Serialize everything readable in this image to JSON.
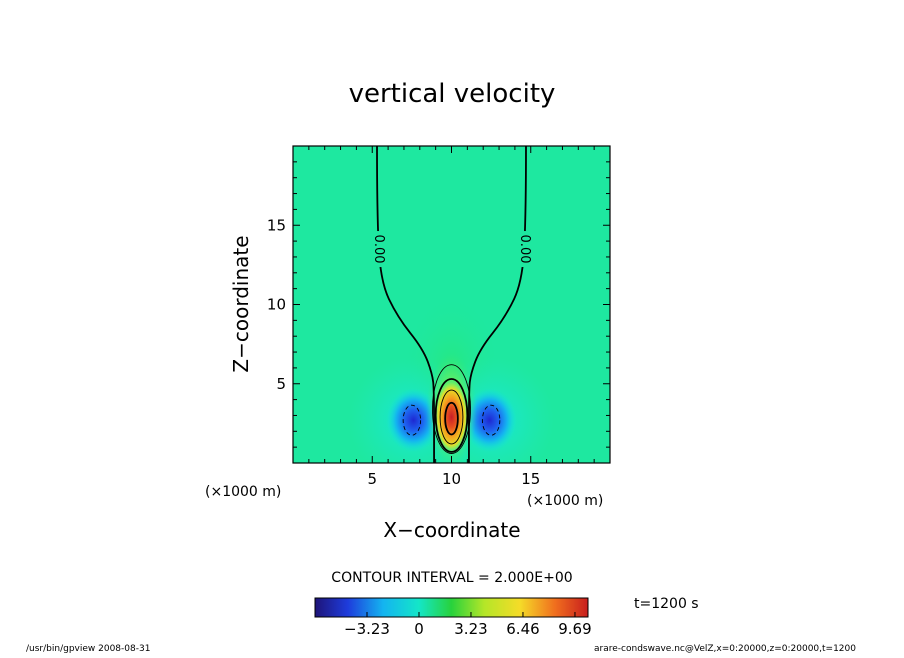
{
  "chart_data": {
    "type": "heatmap",
    "title": "vertical velocity",
    "xlabel": "X−coordinate",
    "ylabel": "Z−coordinate",
    "x_unit": "(×1000 m)",
    "y_unit": "(×1000 m)",
    "xlim": [
      0,
      20
    ],
    "ylim": [
      0,
      20
    ],
    "x_ticks": [
      "5",
      "10",
      "15"
    ],
    "y_ticks": [
      "5",
      "10",
      "15"
    ],
    "x_tick_values": [
      5,
      10,
      15
    ],
    "y_tick_values": [
      5,
      10,
      15
    ],
    "contour_labels": [
      "0.00",
      "0.00"
    ],
    "contour_interval_text": "CONTOUR INTERVAL = 2.000E+00",
    "colorbar_ticks": [
      "−3.23",
      "0",
      "3.23",
      "6.46",
      "9.69"
    ],
    "colorbar_tick_values": [
      -3.23,
      0,
      3.23,
      6.46,
      9.69
    ],
    "colorbar_range": [
      -6.46,
      10.5
    ],
    "time_label": "t=1200 s",
    "features": {
      "updraft_core": {
        "x": 10,
        "z": 2.5,
        "value": 9.69
      },
      "downdrafts": [
        {
          "x": 7.5,
          "z": 2.7,
          "value": -3.23
        },
        {
          "x": 12.5,
          "z": 2.7,
          "value": -3.23
        }
      ]
    },
    "colors": {
      "background_field": "#1ee8a0",
      "positive_max": "#c81e1e",
      "negative_min": "#1e2ad2"
    }
  },
  "footer": {
    "left": "/usr/bin/gpview    2008-08-31",
    "right": "arare-condswave.nc@VelZ,x=0:20000,z=0:20000,t=1200"
  }
}
